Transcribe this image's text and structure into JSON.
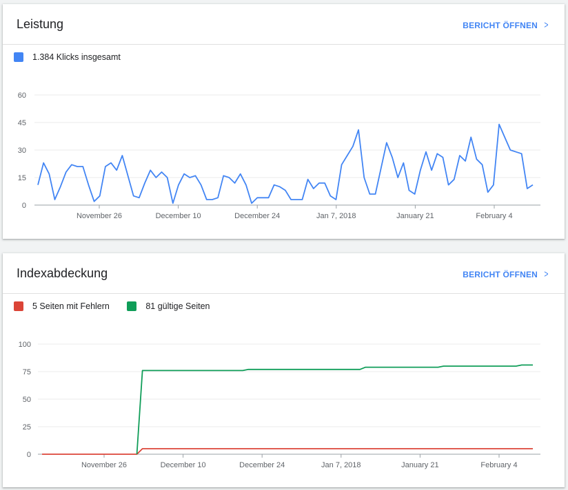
{
  "cards": [
    {
      "title": "Leistung",
      "open_label": "BERICHT ÖFFNEN",
      "legend": [
        {
          "label": "1.384 Klicks insgesamt",
          "color": "#4285f4"
        }
      ]
    },
    {
      "title": "Indexabdeckung",
      "open_label": "BERICHT ÖFFNEN",
      "legend": [
        {
          "label": "5 Seiten mit Fehlern",
          "color": "#db4437"
        },
        {
          "label": "81 gültige Seiten",
          "color": "#0f9d58"
        }
      ]
    }
  ],
  "icons": {
    "open": "chevron-right-icon"
  },
  "chart_data": [
    {
      "type": "line",
      "ylim": [
        0,
        60
      ],
      "yticks": [
        0,
        15,
        30,
        45,
        60
      ],
      "xticks": [
        "November 26",
        "December 10",
        "December 24",
        "Jan 7, 2018",
        "January 21",
        "February 4"
      ],
      "grid": true,
      "series": [
        {
          "name": "1.384 Klicks insgesamt",
          "color": "#4285f4",
          "values": [
            11,
            23,
            17,
            3,
            10,
            18,
            22,
            21,
            21,
            11,
            2,
            5,
            21,
            23,
            19,
            27,
            16,
            5,
            4,
            12,
            19,
            15,
            18,
            15,
            1,
            11,
            17,
            15,
            16,
            11,
            3,
            3,
            4,
            16,
            15,
            12,
            17,
            11,
            1,
            4,
            4,
            4,
            11,
            10,
            8,
            3,
            3,
            3,
            14,
            9,
            12,
            12,
            5,
            3,
            22,
            27,
            32,
            41,
            15,
            6,
            6,
            20,
            34,
            26,
            15,
            23,
            8,
            6,
            19,
            29,
            19,
            28,
            26,
            11,
            14,
            27,
            24,
            37,
            25,
            22,
            7,
            11,
            44,
            37,
            30,
            29,
            28,
            9,
            11
          ]
        }
      ]
    },
    {
      "type": "line",
      "ylim": [
        0,
        100
      ],
      "yticks": [
        0,
        25,
        50,
        75,
        100
      ],
      "xticks": [
        "November 26",
        "December 10",
        "December 24",
        "Jan 7, 2018",
        "January 21",
        "February 4"
      ],
      "grid": true,
      "series": [
        {
          "name": "5 Seiten mit Fehlern",
          "color": "#db4437",
          "values": [
            0,
            0,
            0,
            0,
            0,
            0,
            0,
            0,
            0,
            0,
            0,
            0,
            0,
            0,
            0,
            0,
            0,
            0,
            5,
            5,
            5,
            5,
            5,
            5,
            5,
            5,
            5,
            5,
            5,
            5,
            5,
            5,
            5,
            5,
            5,
            5,
            5,
            5,
            5,
            5,
            5,
            5,
            5,
            5,
            5,
            5,
            5,
            5,
            5,
            5,
            5,
            5,
            5,
            5,
            5,
            5,
            5,
            5,
            5,
            5,
            5,
            5,
            5,
            5,
            5,
            5,
            5,
            5,
            5,
            5,
            5,
            5,
            5,
            5,
            5,
            5,
            5,
            5,
            5,
            5,
            5,
            5,
            5,
            5,
            5,
            5,
            5,
            5,
            5
          ]
        },
        {
          "name": "81 gültige Seiten",
          "color": "#0f9d58",
          "values": [
            null,
            null,
            null,
            null,
            null,
            null,
            null,
            null,
            null,
            null,
            null,
            null,
            null,
            null,
            null,
            null,
            null,
            0,
            76,
            76,
            76,
            76,
            76,
            76,
            76,
            76,
            76,
            76,
            76,
            76,
            76,
            76,
            76,
            76,
            76,
            76,
            76,
            77,
            77,
            77,
            77,
            77,
            77,
            77,
            77,
            77,
            77,
            77,
            77,
            77,
            77,
            77,
            77,
            77,
            77,
            77,
            77,
            77,
            79,
            79,
            79,
            79,
            79,
            79,
            79,
            79,
            79,
            79,
            79,
            79,
            79,
            79,
            80,
            80,
            80,
            80,
            80,
            80,
            80,
            80,
            80,
            80,
            80,
            80,
            80,
            80,
            81,
            81,
            81
          ]
        }
      ]
    }
  ]
}
